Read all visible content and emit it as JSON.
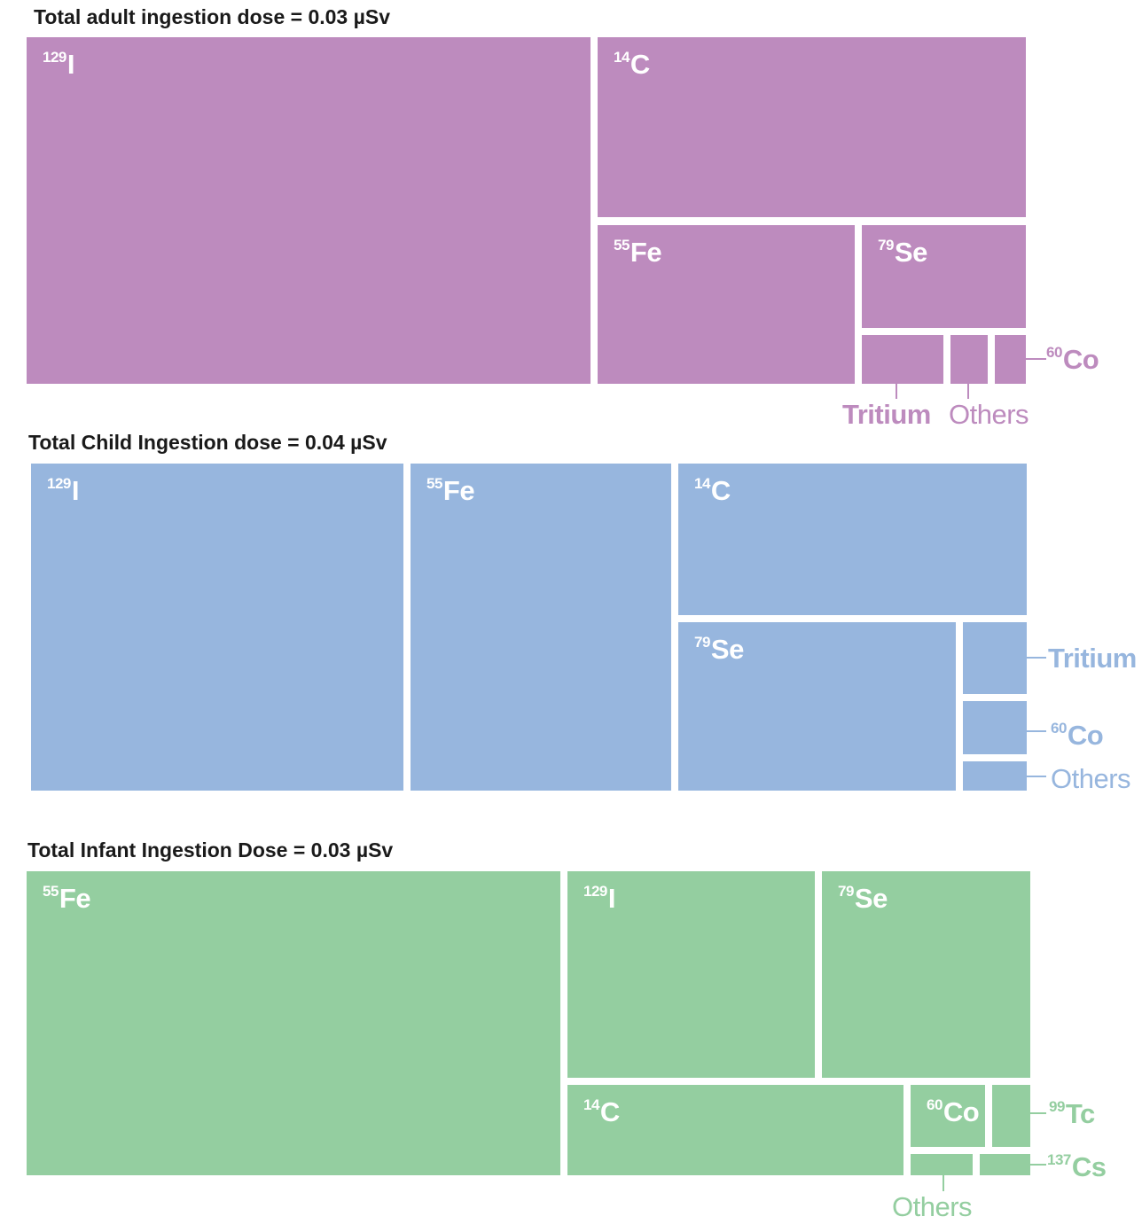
{
  "chart_data": [
    {
      "type": "treemap",
      "title": "Total adult ingestion dose = 0.03 µSv",
      "color": "#bd8bbe",
      "cells": [
        {
          "mass": "129",
          "symbol": "I"
        },
        {
          "mass": "14",
          "symbol": "C"
        },
        {
          "mass": "55",
          "symbol": "Fe"
        },
        {
          "mass": "79",
          "symbol": "Se"
        },
        {
          "mass": "",
          "symbol": ""
        },
        {
          "mass": "",
          "symbol": ""
        },
        {
          "mass": "",
          "symbol": ""
        }
      ],
      "callouts": [
        {
          "mass": "60",
          "symbol": "Co"
        },
        {
          "mass": "",
          "symbol": "Tritium"
        },
        {
          "mass": "",
          "symbol": "Others"
        }
      ]
    },
    {
      "type": "treemap",
      "title": "Total Child Ingestion dose = 0.04 µSv",
      "color": "#97b6de",
      "cells": [
        {
          "mass": "129",
          "symbol": "I"
        },
        {
          "mass": "55",
          "symbol": "Fe"
        },
        {
          "mass": "14",
          "symbol": "C"
        },
        {
          "mass": "79",
          "symbol": "Se"
        },
        {
          "mass": "",
          "symbol": ""
        },
        {
          "mass": "",
          "symbol": ""
        },
        {
          "mass": "",
          "symbol": ""
        }
      ],
      "callouts": [
        {
          "mass": "",
          "symbol": "Tritium"
        },
        {
          "mass": "60",
          "symbol": "Co"
        },
        {
          "mass": "",
          "symbol": "Others"
        }
      ]
    },
    {
      "type": "treemap",
      "title": "Total Infant Ingestion Dose = 0.03 µSv",
      "color": "#94cea0",
      "cells": [
        {
          "mass": "55",
          "symbol": "Fe"
        },
        {
          "mass": "129",
          "symbol": "I"
        },
        {
          "mass": "79",
          "symbol": "Se"
        },
        {
          "mass": "14",
          "symbol": "C"
        },
        {
          "mass": "60",
          "symbol": "Co"
        },
        {
          "mass": "",
          "symbol": ""
        },
        {
          "mass": "",
          "symbol": ""
        },
        {
          "mass": "",
          "symbol": ""
        }
      ],
      "callouts": [
        {
          "mass": "99",
          "symbol": "Tc"
        },
        {
          "mass": "137",
          "symbol": "Cs"
        },
        {
          "mass": "",
          "symbol": "Others"
        }
      ]
    }
  ]
}
